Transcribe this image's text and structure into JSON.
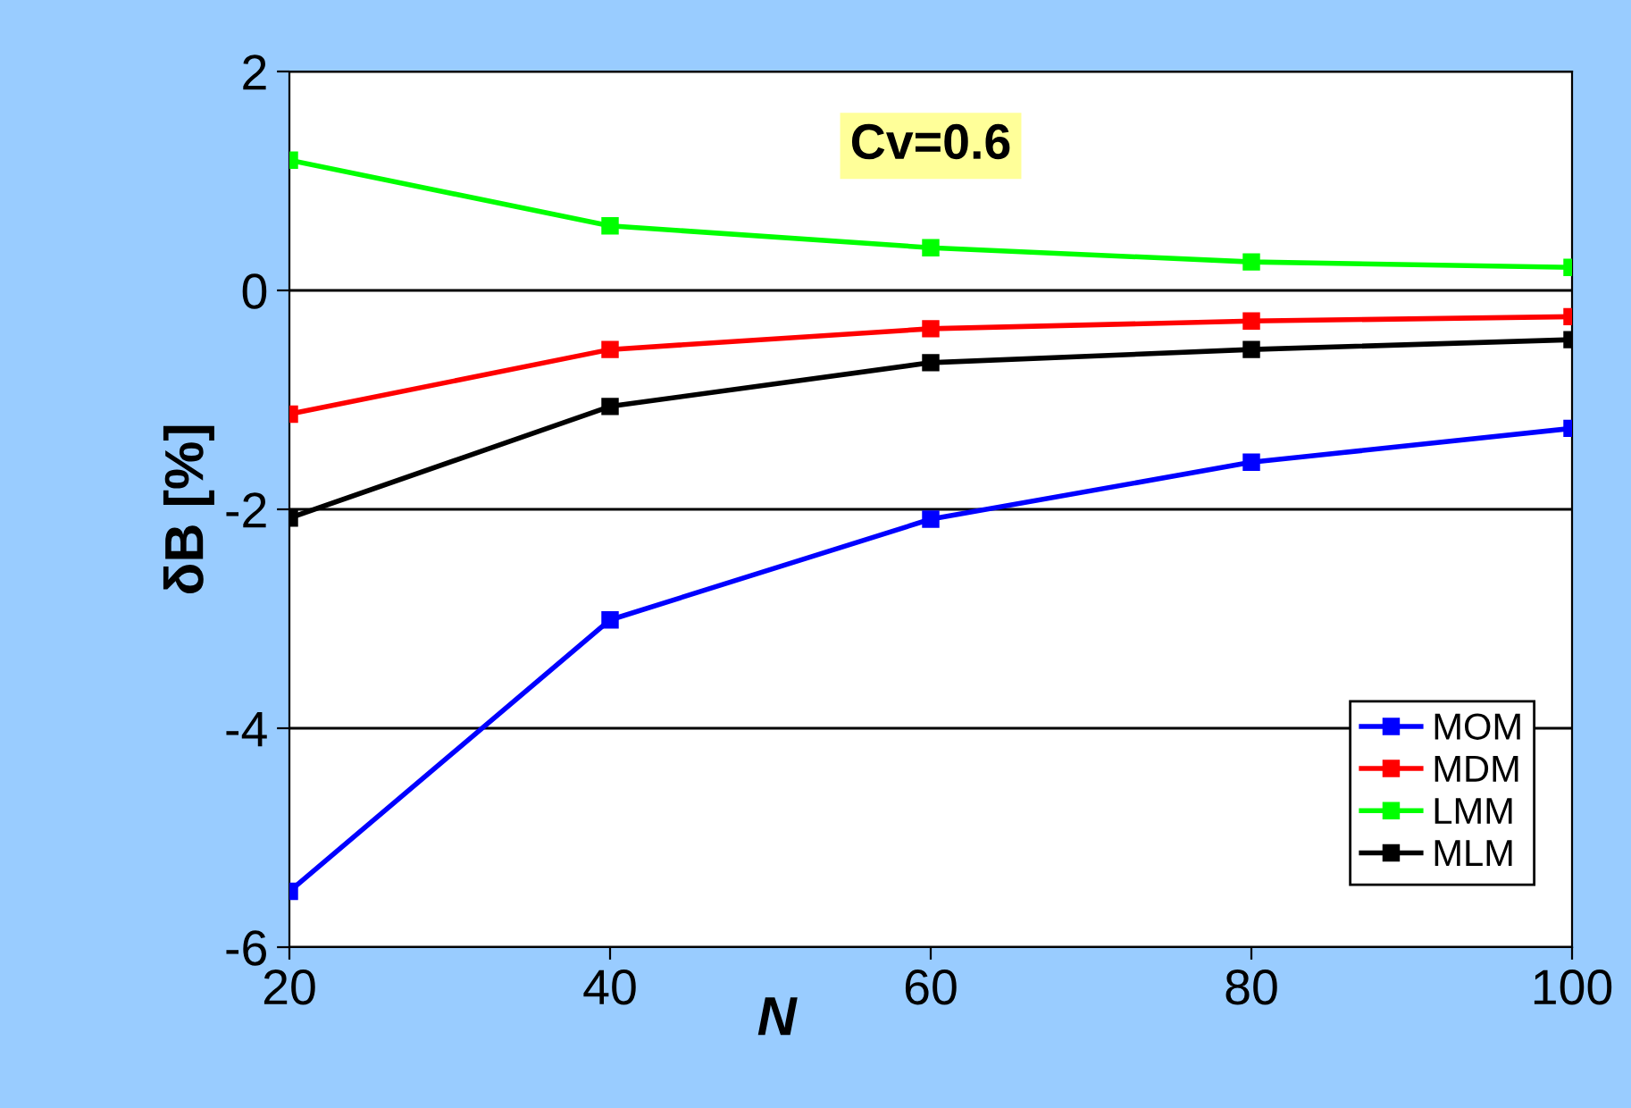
{
  "chart_data": {
    "type": "line",
    "xlabel": "N",
    "ylabel": "δB [%]",
    "annotations": [
      "Cv=0.6"
    ],
    "x": [
      20,
      40,
      60,
      80,
      100
    ],
    "series": [
      {
        "name": "MOM",
        "color": "#0000ff",
        "values": [
          -5.49,
          -3.01,
          -2.09,
          -1.57,
          -1.26
        ]
      },
      {
        "name": "MDM",
        "color": "#ff0000",
        "values": [
          -1.13,
          -0.54,
          -0.35,
          -0.28,
          -0.24
        ]
      },
      {
        "name": "LMM",
        "color": "#00ff00",
        "values": [
          1.19,
          0.59,
          0.39,
          0.26,
          0.21
        ]
      },
      {
        "name": "MLM",
        "color": "#000000",
        "values": [
          -2.08,
          -1.06,
          -0.66,
          -0.54,
          -0.45
        ]
      }
    ],
    "xlim": [
      20,
      100
    ],
    "xticks": [
      20,
      40,
      60,
      80,
      100
    ],
    "ylim": [
      -6,
      2
    ],
    "yticks": [
      -6,
      -4,
      -2,
      0,
      2
    ],
    "grid": "y",
    "legend": "bottom right",
    "marker": "square",
    "line_style": "solid"
  }
}
